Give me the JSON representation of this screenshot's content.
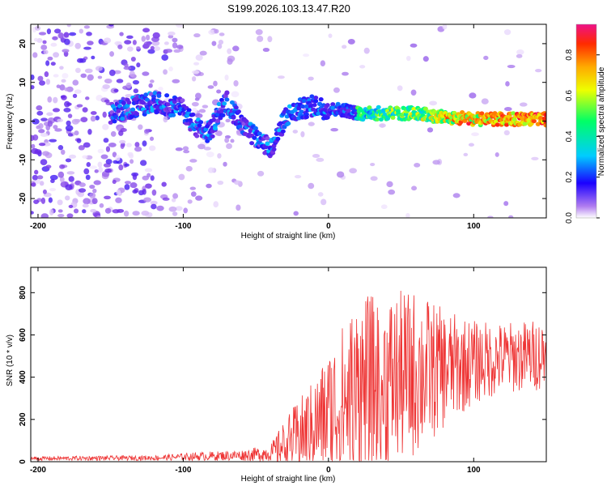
{
  "title": "S199.2026.103.13.47.R20",
  "chart_data": [
    {
      "type": "heatmap",
      "id": "spectrogram",
      "xlabel": "Height of straight line (km)",
      "ylabel": "Frequency (Hz)",
      "xlim": [
        -205,
        150
      ],
      "ylim": [
        -25,
        25
      ],
      "xticks": [
        -200,
        -100,
        0,
        100
      ],
      "yticks": [
        -20,
        -10,
        0,
        10,
        20
      ],
      "ridge": {
        "description": "frequency track of dominant signal",
        "x": [
          -150,
          -140,
          -130,
          -120,
          -110,
          -100,
          -95,
          -90,
          -85,
          -80,
          -75,
          -70,
          -65,
          -60,
          -55,
          -50,
          -45,
          -40,
          -35,
          -30,
          -20,
          -10,
          0,
          10,
          20,
          40,
          60,
          80,
          100,
          120,
          150
        ],
        "y": [
          2,
          3,
          4,
          5,
          4,
          3,
          0,
          -2,
          -3,
          -2,
          3,
          5,
          2,
          -1,
          -3,
          -4,
          -6,
          -7,
          -4,
          1,
          3,
          4,
          3,
          3,
          2,
          2,
          2,
          1,
          0.5,
          0.5,
          0.5
        ]
      },
      "colorbar": {
        "label": "Normalized spectral amplitude",
        "range": [
          0,
          0.95
        ],
        "ticks": [
          0.0,
          0.2,
          0.4,
          0.6,
          0.8
        ]
      }
    },
    {
      "type": "line",
      "id": "snr",
      "xlabel": "Height of straight line (km)",
      "ylabel": "SNR (10 * v/v)",
      "xlim": [
        -205,
        150
      ],
      "ylim": [
        0,
        920
      ],
      "xticks": [
        -200,
        -100,
        0,
        100
      ],
      "yticks": [
        0,
        200,
        400,
        600,
        800
      ],
      "color": "#ee3333",
      "series": [
        {
          "name": "SNR",
          "envelope_x": [
            -205,
            -120,
            -90,
            -60,
            -40,
            -30,
            -20,
            -10,
            0,
            10,
            20,
            40,
            60,
            80,
            100,
            120,
            150
          ],
          "baseline_y": [
            15,
            18,
            25,
            30,
            40,
            80,
            120,
            170,
            230,
            280,
            330,
            380,
            420,
            440,
            470,
            490,
            510
          ],
          "spread_y": [
            10,
            12,
            20,
            25,
            40,
            120,
            180,
            220,
            300,
            380,
            450,
            420,
            400,
            280,
            200,
            170,
            170
          ]
        }
      ]
    }
  ]
}
